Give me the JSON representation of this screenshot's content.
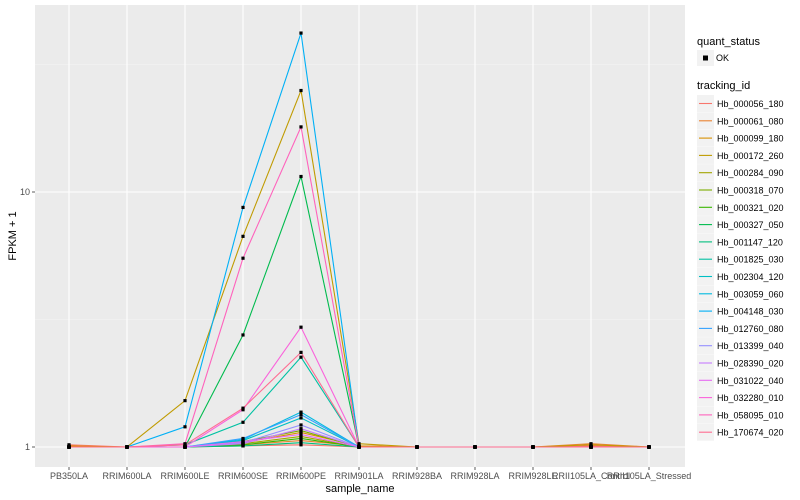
{
  "chart_data": {
    "type": "line",
    "scale_y": "log10",
    "ylim": [
      0.95,
      60
    ],
    "ylabel": "FPKM + 1",
    "xlabel": "sample_name",
    "y_ticks": [
      1,
      10
    ],
    "grid": true,
    "legend_position": "right",
    "categories": [
      "PB350LA",
      "RRIM600LA",
      "RRIM600LE",
      "RRIM600SE",
      "RRIM600PE",
      "RRIM901LA",
      "RRIM928BA",
      "RRIM928LA",
      "RRIM928LE",
      "RRII105LA_Control",
      "RRII105LA_Stressed"
    ],
    "quant_status": {
      "title": "quant_status",
      "levels": [
        "OK"
      ]
    },
    "tracking_legend_title": "tracking_id",
    "series": [
      {
        "name": "Hb_000056_180",
        "color": "#F8766D",
        "values": [
          1.02,
          1.0,
          1.0,
          1.01,
          1.02,
          1.0,
          1.0,
          1.0,
          1.0,
          1.01,
          1.0
        ]
      },
      {
        "name": "Hb_000061_080",
        "color": "#EA8331",
        "values": [
          1.0,
          1.0,
          1.0,
          1.02,
          1.06,
          1.01,
          1.0,
          1.0,
          1.0,
          1.03,
          1.0
        ]
      },
      {
        "name": "Hb_000099_180",
        "color": "#D89000",
        "values": [
          1.01,
          1.0,
          1.0,
          1.04,
          1.14,
          1.01,
          1.0,
          1.0,
          1.0,
          1.0,
          1.0
        ]
      },
      {
        "name": "Hb_000172_260",
        "color": "#C09B00",
        "values": [
          1.0,
          1.0,
          1.52,
          6.7,
          25.0,
          1.03,
          1.0,
          1.0,
          1.0,
          1.02,
          1.0
        ]
      },
      {
        "name": "Hb_000284_090",
        "color": "#A3A500",
        "values": [
          1.0,
          1.0,
          1.0,
          1.03,
          1.1,
          1.0,
          1.0,
          1.0,
          1.0,
          1.0,
          1.0
        ]
      },
      {
        "name": "Hb_000318_070",
        "color": "#7CAE00",
        "values": [
          1.0,
          1.0,
          1.0,
          1.05,
          1.16,
          1.0,
          1.0,
          1.0,
          1.0,
          1.0,
          1.0
        ]
      },
      {
        "name": "Hb_000321_020",
        "color": "#39B600",
        "values": [
          1.0,
          1.0,
          1.0,
          1.02,
          1.08,
          1.0,
          1.0,
          1.0,
          1.0,
          1.0,
          1.0
        ]
      },
      {
        "name": "Hb_000327_050",
        "color": "#00BB4E",
        "values": [
          1.0,
          1.0,
          1.0,
          2.75,
          11.5,
          1.0,
          1.0,
          1.0,
          1.0,
          1.0,
          1.0
        ]
      },
      {
        "name": "Hb_001147_120",
        "color": "#00BF7D",
        "values": [
          1.0,
          1.0,
          1.0,
          1.01,
          1.04,
          1.0,
          1.0,
          1.0,
          1.0,
          1.0,
          1.0
        ]
      },
      {
        "name": "Hb_001825_030",
        "color": "#00C1A3",
        "values": [
          1.0,
          1.0,
          1.02,
          1.25,
          2.25,
          1.0,
          1.0,
          1.0,
          1.0,
          1.0,
          1.0
        ]
      },
      {
        "name": "Hb_002304_120",
        "color": "#00BFC4",
        "values": [
          1.0,
          1.0,
          1.0,
          1.06,
          1.3,
          1.0,
          1.0,
          1.0,
          1.0,
          1.0,
          1.0
        ]
      },
      {
        "name": "Hb_003059_060",
        "color": "#00BAE0",
        "values": [
          1.0,
          1.0,
          1.0,
          1.07,
          1.37,
          1.0,
          1.0,
          1.0,
          1.0,
          1.0,
          1.0
        ]
      },
      {
        "name": "Hb_004148_030",
        "color": "#00B0F6",
        "values": [
          1.0,
          1.0,
          1.2,
          8.7,
          42.0,
          1.0,
          1.0,
          1.0,
          1.0,
          1.0,
          1.0
        ]
      },
      {
        "name": "Hb_012760_080",
        "color": "#35A2FF",
        "values": [
          1.0,
          1.0,
          1.0,
          1.08,
          1.34,
          1.0,
          1.0,
          1.0,
          1.0,
          1.0,
          1.0
        ]
      },
      {
        "name": "Hb_013399_040",
        "color": "#9590FF",
        "values": [
          1.0,
          1.0,
          1.0,
          1.04,
          1.22,
          1.0,
          1.0,
          1.0,
          1.0,
          1.0,
          1.0
        ]
      },
      {
        "name": "Hb_028390_020",
        "color": "#C77CFF",
        "values": [
          1.0,
          1.0,
          1.0,
          1.03,
          1.18,
          1.0,
          1.0,
          1.0,
          1.0,
          1.0,
          1.0
        ]
      },
      {
        "name": "Hb_031022_040",
        "color": "#E76BF3",
        "values": [
          1.0,
          1.0,
          1.0,
          1.05,
          1.12,
          1.0,
          1.0,
          1.0,
          1.0,
          1.0,
          1.0
        ]
      },
      {
        "name": "Hb_032280_010",
        "color": "#FA62DB",
        "values": [
          1.0,
          1.0,
          1.0,
          1.4,
          2.95,
          1.0,
          1.0,
          1.0,
          1.0,
          1.0,
          1.0
        ]
      },
      {
        "name": "Hb_058095_010",
        "color": "#FF62BC",
        "values": [
          1.0,
          1.0,
          1.03,
          5.5,
          18.0,
          1.0,
          1.0,
          1.0,
          1.0,
          1.0,
          1.0
        ]
      },
      {
        "name": "Hb_170674_020",
        "color": "#FF6C91",
        "values": [
          1.0,
          1.0,
          1.02,
          1.42,
          2.35,
          1.0,
          1.0,
          1.0,
          1.0,
          1.0,
          1.0
        ]
      }
    ]
  }
}
